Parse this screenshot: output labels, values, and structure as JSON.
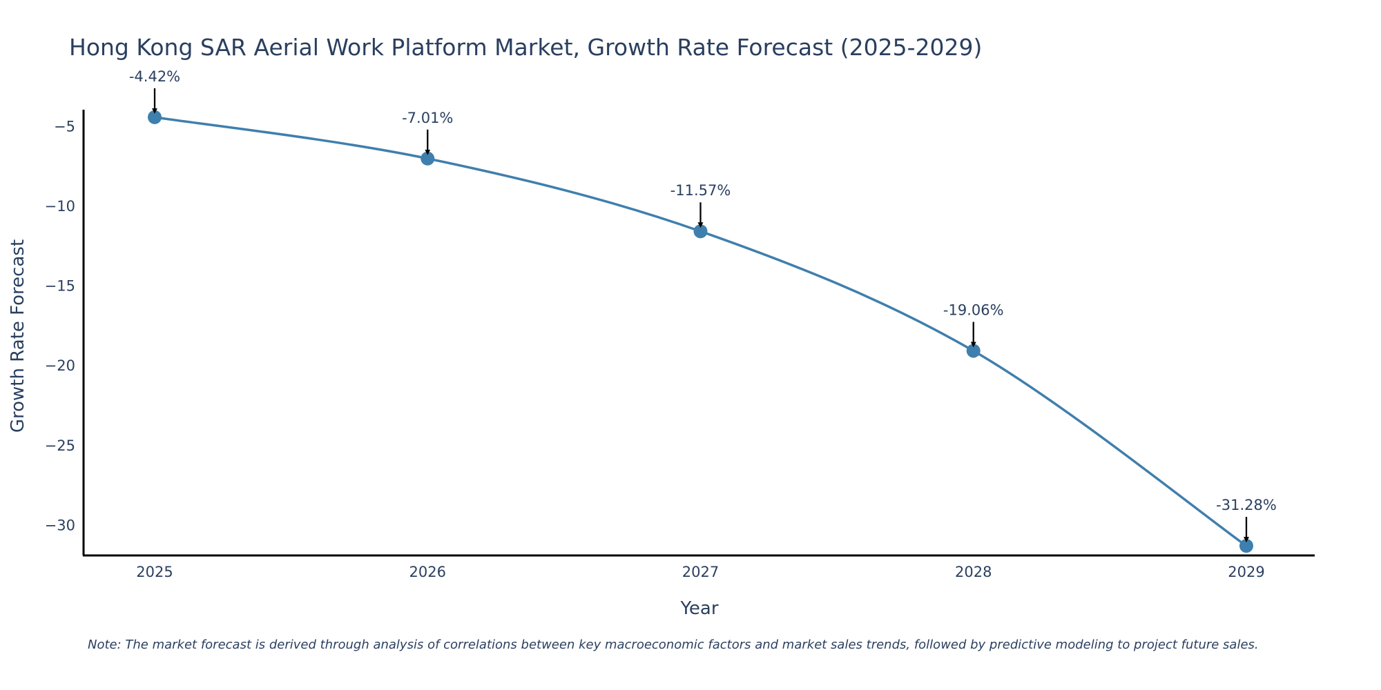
{
  "chart_data": {
    "type": "line",
    "title": "Hong Kong SAR Aerial Work Platform Market, Growth Rate Forecast (2025-2029)",
    "xlabel": "Year",
    "ylabel": "Growth Rate Forecast",
    "categories": [
      "2025",
      "2026",
      "2027",
      "2028",
      "2029"
    ],
    "series": [
      {
        "name": "Growth Rate Forecast",
        "values": [
          -4.42,
          -7.01,
          -11.57,
          -19.06,
          -31.28
        ],
        "labels": [
          "-4.42%",
          "-7.01%",
          "-11.57%",
          "-19.06%",
          "-31.28%"
        ]
      }
    ],
    "ylim": [
      -31.88,
      -3.95
    ],
    "yticks": [
      -5,
      -10,
      -15,
      -20,
      -25,
      -30
    ],
    "ytick_labels": [
      "−5",
      "−10",
      "−15",
      "−20",
      "−25",
      "−30"
    ],
    "grid": false,
    "line_color": "#3f7fad",
    "marker_color": "#3f7fad",
    "arrow_color": "#000000",
    "note": "Note: The market forecast is derived through analysis of correlations between key macroeconomic factors and market sales trends, followed by predictive modeling to project future sales."
  }
}
